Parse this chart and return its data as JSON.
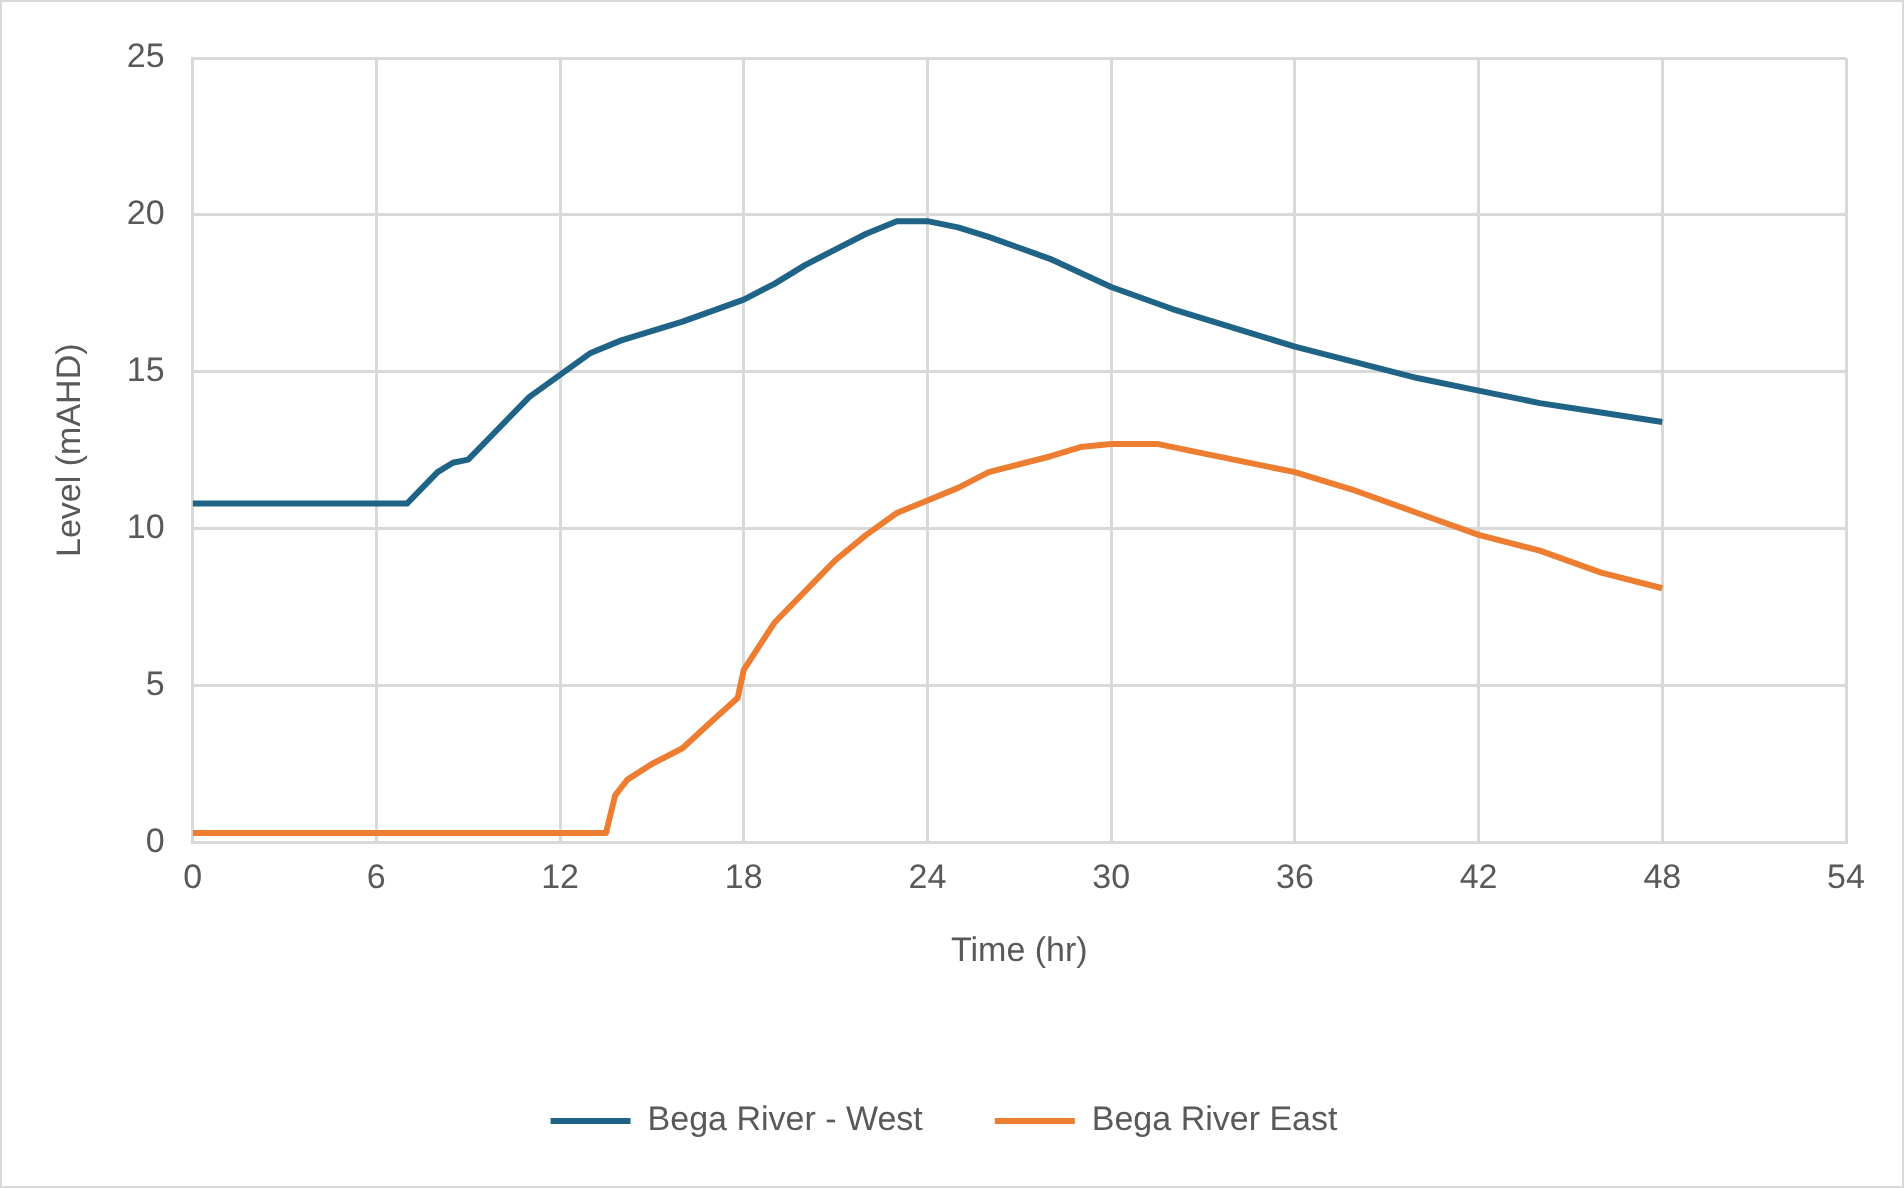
{
  "chart_data": {
    "type": "line",
    "xlabel": "Time (hr)",
    "ylabel": "Level (mAHD)",
    "xlim": [
      0,
      54
    ],
    "xticks": [
      0,
      6,
      12,
      18,
      24,
      30,
      36,
      42,
      48,
      54
    ],
    "ylim": [
      0,
      25
    ],
    "yticks": [
      0,
      5,
      10,
      15,
      20,
      25
    ],
    "grid": true,
    "legend": "bottom",
    "marker": "none",
    "line_style": "solid",
    "series": [
      {
        "name": "Bega River - West",
        "color": "#1f6486",
        "x": [
          0,
          7,
          8,
          8.5,
          9,
          10,
          11,
          12,
          13,
          14,
          16,
          18,
          19,
          20,
          21,
          22,
          23,
          24,
          25,
          26,
          28,
          30,
          32,
          34,
          36,
          38,
          40,
          42,
          44,
          46,
          48
        ],
        "values": [
          10.8,
          10.8,
          11.8,
          12.1,
          12.2,
          13.2,
          14.2,
          14.9,
          15.6,
          16.0,
          16.6,
          17.3,
          17.8,
          18.4,
          18.9,
          19.4,
          19.8,
          19.8,
          19.6,
          19.3,
          18.6,
          17.7,
          17.0,
          16.4,
          15.8,
          15.3,
          14.8,
          14.4,
          14.0,
          13.7,
          13.4
        ]
      },
      {
        "name": "Bega River East",
        "color": "#ed7d31",
        "x": [
          0,
          13.5,
          13.8,
          14.2,
          15,
          16,
          17,
          17.8,
          18,
          19,
          20,
          21,
          22,
          23,
          24,
          25,
          26,
          28,
          29,
          30,
          31.5,
          33,
          35,
          36,
          38,
          40,
          42,
          44,
          46,
          48
        ],
        "values": [
          0.3,
          0.3,
          1.5,
          2.0,
          2.5,
          3.0,
          3.9,
          4.6,
          5.5,
          7.0,
          8.0,
          9.0,
          9.8,
          10.5,
          10.9,
          11.3,
          11.8,
          12.3,
          12.6,
          12.7,
          12.7,
          12.4,
          12.0,
          11.8,
          11.2,
          10.5,
          9.8,
          9.3,
          8.6,
          8.1
        ]
      }
    ]
  }
}
